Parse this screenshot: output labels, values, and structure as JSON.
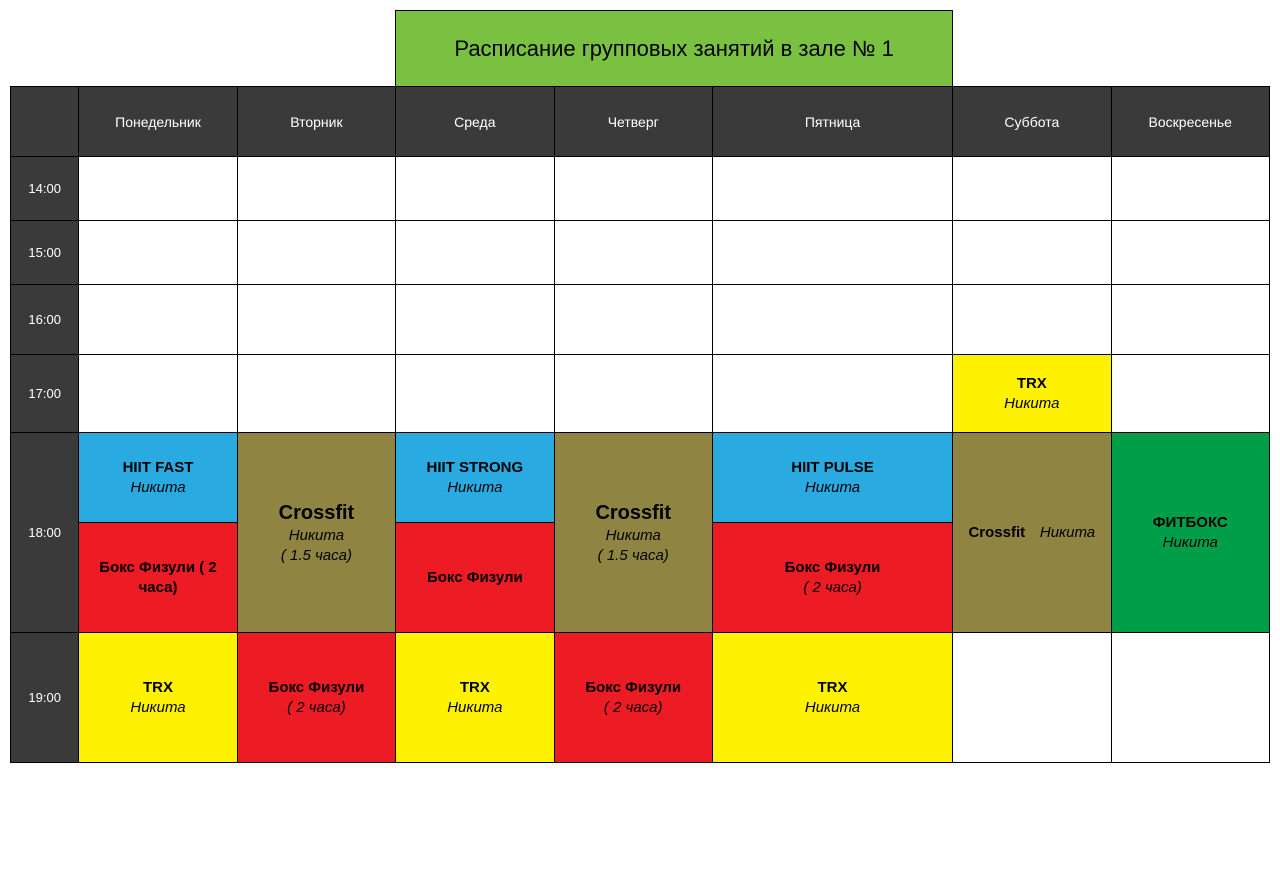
{
  "colors": {
    "header_bg": "#3a3a3a",
    "title_bg": "#7ac142",
    "blue": "#29abe2",
    "olive": "#8f8442",
    "red": "#ed1c24",
    "yellow": "#fff200",
    "green": "#009e49",
    "white": "#ffffff",
    "border": "#000000",
    "header_text": "#ffffff",
    "black_text": "#000000"
  },
  "title": "Расписание групповых занятий в зале № 1",
  "days": {
    "mon": "Понедельник",
    "tue": "Вторник",
    "wed": "Среда",
    "thu": "Четверг",
    "fri": "Пятница",
    "sat": "Суббота",
    "sun": "Воскресенье"
  },
  "times": {
    "t14": "14:00",
    "t15": "15:00",
    "t16": "16:00",
    "t17": "17:00",
    "t18": "18:00",
    "t19": "19:00"
  },
  "row_heights": {
    "r14": 64,
    "r15": 64,
    "r16": 70,
    "r17": 78,
    "r18a": 90,
    "r18b": 110,
    "r19": 130
  },
  "cells": {
    "sat17": {
      "name": "TRX",
      "trainer": "Никита",
      "bg": "yellow"
    },
    "mon18a": {
      "name": "HIIT FAST",
      "trainer": "Никита",
      "bg": "blue"
    },
    "tue18": {
      "name": "Crossfit",
      "trainer": "Никита",
      "note": "( 1.5 часа)",
      "bg": "olive",
      "name_fs": 20
    },
    "wed18a": {
      "name": "HIIT STRONG",
      "trainer": "Никита",
      "bg": "blue"
    },
    "thu18": {
      "name": "Crossfit",
      "trainer": "Никита",
      "note": "( 1.5 часа)",
      "bg": "olive",
      "name_fs": 20
    },
    "fri18a": {
      "name": "HIIT PULSE",
      "trainer": "Никита",
      "bg": "blue"
    },
    "sat18": {
      "name": "Crossfit",
      "trainer": "Никита",
      "bg": "olive",
      "layout": "row"
    },
    "sun18": {
      "name": "ФИТБОКС",
      "trainer": "Никита",
      "bg": "green"
    },
    "mon18b": {
      "name": "Бокс Физули          ( 2 часа)",
      "bg": "red"
    },
    "wed18b": {
      "name": "Бокс Физули",
      "bg": "red"
    },
    "fri18b": {
      "name": "Бокс Физули",
      "note": "( 2 часа)",
      "bg": "red"
    },
    "mon19": {
      "name": "TRX",
      "trainer": "Никита",
      "bg": "yellow"
    },
    "tue19": {
      "name": "Бокс Физули",
      "note": "( 2 часа)",
      "bg": "red"
    },
    "wed19": {
      "name": "TRX",
      "trainer": "Никита",
      "bg": "yellow"
    },
    "thu19": {
      "name": "Бокс Физули",
      "note": "( 2 часа)",
      "bg": "red"
    },
    "fri19": {
      "name": "TRX",
      "trainer": "Никита",
      "bg": "yellow"
    }
  }
}
